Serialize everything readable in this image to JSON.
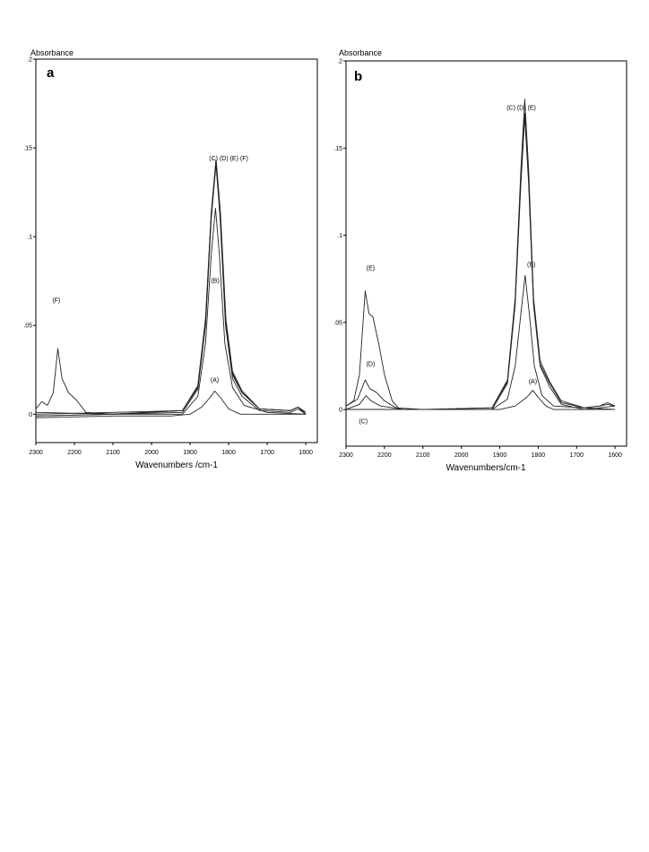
{
  "chart_data": [
    {
      "panel": "a",
      "type": "line",
      "ylabel": "Absorbance",
      "xlabel": "Wavenumbers /cm-1",
      "xlim": [
        2300,
        1570
      ],
      "ylim": [
        -0.016,
        0.2
      ],
      "x_reversed": true,
      "grid": false,
      "x_ticks": [
        "2300",
        "2200",
        "2100",
        "2000",
        "1900",
        "1800",
        "1700",
        "1600"
      ],
      "x_tick_values": [
        2300,
        2200,
        2100,
        2000,
        1900,
        1800,
        1700,
        1600
      ],
      "y_ticks": [
        ".2",
        ".15",
        ".1",
        ".05",
        "0"
      ],
      "y_tick_values": [
        0.2,
        0.15,
        0.1,
        0.05,
        0
      ],
      "annotations": [
        {
          "text": "(C) (D) (E) (F)",
          "x": 1800,
          "y": 0.143
        },
        {
          "text": "(B)",
          "x": 1835,
          "y": 0.074
        },
        {
          "text": "(F)",
          "x": 2247,
          "y": 0.063
        },
        {
          "text": "(A)",
          "x": 1836,
          "y": 0.018
        }
      ],
      "series": [
        {
          "values": [
            {
              "x": 2300,
              "y": -0.002
            },
            {
              "x": 2100,
              "y": -0.001
            },
            {
              "x": 1950,
              "y": -0.001
            },
            {
              "x": 1900,
              "y": 0.0
            },
            {
              "x": 1870,
              "y": 0.004
            },
            {
              "x": 1850,
              "y": 0.009
            },
            {
              "x": 1836,
              "y": 0.013
            },
            {
              "x": 1820,
              "y": 0.009
            },
            {
              "x": 1800,
              "y": 0.003
            },
            {
              "x": 1770,
              "y": 0.0
            },
            {
              "x": 1600,
              "y": 0.0
            }
          ]
        },
        {
          "values": [
            {
              "x": 2300,
              "y": 0.001
            },
            {
              "x": 2100,
              "y": 0.0
            },
            {
              "x": 1920,
              "y": 0.0
            },
            {
              "x": 1880,
              "y": 0.01
            },
            {
              "x": 1860,
              "y": 0.04
            },
            {
              "x": 1845,
              "y": 0.09
            },
            {
              "x": 1834,
              "y": 0.116
            },
            {
              "x": 1824,
              "y": 0.09
            },
            {
              "x": 1810,
              "y": 0.04
            },
            {
              "x": 1790,
              "y": 0.015
            },
            {
              "x": 1760,
              "y": 0.005
            },
            {
              "x": 1700,
              "y": 0.001
            },
            {
              "x": 1600,
              "y": 0.0
            }
          ]
        },
        {
          "values": [
            {
              "x": 2300,
              "y": -0.001
            },
            {
              "x": 2100,
              "y": 0.0
            },
            {
              "x": 1920,
              "y": 0.001
            },
            {
              "x": 1880,
              "y": 0.014
            },
            {
              "x": 1860,
              "y": 0.05
            },
            {
              "x": 1845,
              "y": 0.11
            },
            {
              "x": 1833,
              "y": 0.141
            },
            {
              "x": 1822,
              "y": 0.11
            },
            {
              "x": 1808,
              "y": 0.05
            },
            {
              "x": 1790,
              "y": 0.02
            },
            {
              "x": 1765,
              "y": 0.01
            },
            {
              "x": 1720,
              "y": 0.002
            },
            {
              "x": 1640,
              "y": 0.001
            },
            {
              "x": 1620,
              "y": 0.003
            },
            {
              "x": 1600,
              "y": 0.0
            }
          ]
        },
        {
          "values": [
            {
              "x": 2300,
              "y": 0.0
            },
            {
              "x": 2100,
              "y": 0.001
            },
            {
              "x": 1920,
              "y": 0.002
            },
            {
              "x": 1880,
              "y": 0.015
            },
            {
              "x": 1860,
              "y": 0.052
            },
            {
              "x": 1845,
              "y": 0.112
            },
            {
              "x": 1833,
              "y": 0.143
            },
            {
              "x": 1822,
              "y": 0.112
            },
            {
              "x": 1808,
              "y": 0.052
            },
            {
              "x": 1790,
              "y": 0.022
            },
            {
              "x": 1765,
              "y": 0.012
            },
            {
              "x": 1720,
              "y": 0.003
            },
            {
              "x": 1640,
              "y": 0.002
            },
            {
              "x": 1620,
              "y": 0.004
            },
            {
              "x": 1600,
              "y": 0.001
            }
          ]
        },
        {
          "values": [
            {
              "x": 2300,
              "y": -0.001
            },
            {
              "x": 2100,
              "y": 0.0
            },
            {
              "x": 1920,
              "y": 0.002
            },
            {
              "x": 1880,
              "y": 0.016
            },
            {
              "x": 1860,
              "y": 0.053
            },
            {
              "x": 1845,
              "y": 0.113
            },
            {
              "x": 1832,
              "y": 0.142
            },
            {
              "x": 1821,
              "y": 0.113
            },
            {
              "x": 1807,
              "y": 0.053
            },
            {
              "x": 1790,
              "y": 0.024
            },
            {
              "x": 1765,
              "y": 0.013
            },
            {
              "x": 1720,
              "y": 0.003
            },
            {
              "x": 1640,
              "y": 0.002
            },
            {
              "x": 1620,
              "y": 0.004
            },
            {
              "x": 1600,
              "y": 0.0
            }
          ]
        },
        {
          "values": [
            {
              "x": 2300,
              "y": 0.003
            },
            {
              "x": 2285,
              "y": 0.007
            },
            {
              "x": 2270,
              "y": 0.005
            },
            {
              "x": 2255,
              "y": 0.012
            },
            {
              "x": 2243,
              "y": 0.037
            },
            {
              "x": 2232,
              "y": 0.02
            },
            {
              "x": 2215,
              "y": 0.012
            },
            {
              "x": 2195,
              "y": 0.008
            },
            {
              "x": 2170,
              "y": 0.001
            },
            {
              "x": 2100,
              "y": 0.0
            },
            {
              "x": 1920,
              "y": 0.002
            },
            {
              "x": 1880,
              "y": 0.016
            },
            {
              "x": 1860,
              "y": 0.054
            },
            {
              "x": 1845,
              "y": 0.114
            },
            {
              "x": 1833,
              "y": 0.143
            },
            {
              "x": 1822,
              "y": 0.114
            },
            {
              "x": 1808,
              "y": 0.054
            },
            {
              "x": 1790,
              "y": 0.023
            },
            {
              "x": 1765,
              "y": 0.012
            },
            {
              "x": 1720,
              "y": 0.003
            },
            {
              "x": 1640,
              "y": 0.002
            },
            {
              "x": 1620,
              "y": 0.004
            },
            {
              "x": 1600,
              "y": 0.001
            }
          ]
        }
      ]
    },
    {
      "panel": "b",
      "type": "line",
      "ylabel": "Absorbance",
      "xlabel": "Wavenumbers/cm-1",
      "xlim": [
        2300,
        1570
      ],
      "ylim": [
        -0.021,
        0.2
      ],
      "x_reversed": true,
      "grid": false,
      "x_ticks": [
        "2300",
        "2200",
        "2100",
        "2000",
        "1900",
        "1800",
        "1700",
        "1600"
      ],
      "x_tick_values": [
        2300,
        2200,
        2100,
        2000,
        1900,
        1800,
        1700,
        1600
      ],
      "y_ticks": [
        ".2",
        ".15",
        ".1",
        ".05",
        "0"
      ],
      "y_tick_values": [
        0.2,
        0.15,
        0.1,
        0.05,
        0
      ],
      "annotations": [
        {
          "text": "(C) (D) (E)",
          "x": 1844,
          "y": 0.172
        },
        {
          "text": "(E)",
          "x": 2236,
          "y": 0.08
        },
        {
          "text": "(B)",
          "x": 1818,
          "y": 0.082
        },
        {
          "text": "(D)",
          "x": 2236,
          "y": 0.025
        },
        {
          "text": "(A)",
          "x": 1814,
          "y": 0.015
        },
        {
          "text": "(C)",
          "x": 2255,
          "y": -0.008
        }
      ],
      "series": [
        {
          "values": [
            {
              "x": 2300,
              "y": 0.0
            },
            {
              "x": 2100,
              "y": 0.0
            },
            {
              "x": 1900,
              "y": 0.0
            },
            {
              "x": 1860,
              "y": 0.002
            },
            {
              "x": 1830,
              "y": 0.007
            },
            {
              "x": 1814,
              "y": 0.011
            },
            {
              "x": 1800,
              "y": 0.007
            },
            {
              "x": 1780,
              "y": 0.002
            },
            {
              "x": 1760,
              "y": 0.0
            },
            {
              "x": 1600,
              "y": 0.0
            }
          ]
        },
        {
          "values": [
            {
              "x": 2300,
              "y": 0.0
            },
            {
              "x": 2100,
              "y": 0.0
            },
            {
              "x": 1920,
              "y": 0.0
            },
            {
              "x": 1880,
              "y": 0.006
            },
            {
              "x": 1860,
              "y": 0.025
            },
            {
              "x": 1845,
              "y": 0.055
            },
            {
              "x": 1834,
              "y": 0.077
            },
            {
              "x": 1823,
              "y": 0.055
            },
            {
              "x": 1810,
              "y": 0.025
            },
            {
              "x": 1790,
              "y": 0.008
            },
            {
              "x": 1760,
              "y": 0.002
            },
            {
              "x": 1600,
              "y": 0.0
            }
          ]
        },
        {
          "values": [
            {
              "x": 2300,
              "y": 0.0
            },
            {
              "x": 2265,
              "y": 0.003
            },
            {
              "x": 2248,
              "y": 0.008
            },
            {
              "x": 2235,
              "y": 0.005
            },
            {
              "x": 2210,
              "y": 0.002
            },
            {
              "x": 2150,
              "y": 0.0
            },
            {
              "x": 1920,
              "y": 0.0
            },
            {
              "x": 1880,
              "y": 0.015
            },
            {
              "x": 1860,
              "y": 0.06
            },
            {
              "x": 1845,
              "y": 0.13
            },
            {
              "x": 1835,
              "y": 0.168
            },
            {
              "x": 1825,
              "y": 0.13
            },
            {
              "x": 1812,
              "y": 0.06
            },
            {
              "x": 1795,
              "y": 0.025
            },
            {
              "x": 1770,
              "y": 0.013
            },
            {
              "x": 1740,
              "y": 0.003
            },
            {
              "x": 1680,
              "y": 0.0
            },
            {
              "x": 1640,
              "y": 0.001
            },
            {
              "x": 1600,
              "y": 0.002
            }
          ]
        },
        {
          "values": [
            {
              "x": 2300,
              "y": 0.002
            },
            {
              "x": 2270,
              "y": 0.006
            },
            {
              "x": 2250,
              "y": 0.017
            },
            {
              "x": 2238,
              "y": 0.012
            },
            {
              "x": 2222,
              "y": 0.01
            },
            {
              "x": 2200,
              "y": 0.005
            },
            {
              "x": 2170,
              "y": 0.001
            },
            {
              "x": 2100,
              "y": 0.0
            },
            {
              "x": 1920,
              "y": 0.001
            },
            {
              "x": 1880,
              "y": 0.016
            },
            {
              "x": 1860,
              "y": 0.062
            },
            {
              "x": 1845,
              "y": 0.132
            },
            {
              "x": 1835,
              "y": 0.17
            },
            {
              "x": 1825,
              "y": 0.132
            },
            {
              "x": 1812,
              "y": 0.062
            },
            {
              "x": 1795,
              "y": 0.026
            },
            {
              "x": 1770,
              "y": 0.015
            },
            {
              "x": 1740,
              "y": 0.004
            },
            {
              "x": 1680,
              "y": 0.001
            },
            {
              "x": 1640,
              "y": 0.002
            },
            {
              "x": 1620,
              "y": 0.003
            },
            {
              "x": 1600,
              "y": 0.002
            }
          ]
        },
        {
          "values": [
            {
              "x": 2300,
              "y": 0.002
            },
            {
              "x": 2280,
              "y": 0.005
            },
            {
              "x": 2265,
              "y": 0.02
            },
            {
              "x": 2250,
              "y": 0.068
            },
            {
              "x": 2240,
              "y": 0.055
            },
            {
              "x": 2230,
              "y": 0.053
            },
            {
              "x": 2215,
              "y": 0.038
            },
            {
              "x": 2200,
              "y": 0.02
            },
            {
              "x": 2180,
              "y": 0.005
            },
            {
              "x": 2160,
              "y": 0.0
            },
            {
              "x": 2100,
              "y": 0.0
            },
            {
              "x": 1920,
              "y": 0.001
            },
            {
              "x": 1880,
              "y": 0.017
            },
            {
              "x": 1860,
              "y": 0.064
            },
            {
              "x": 1845,
              "y": 0.138
            },
            {
              "x": 1835,
              "y": 0.178
            },
            {
              "x": 1825,
              "y": 0.138
            },
            {
              "x": 1812,
              "y": 0.064
            },
            {
              "x": 1795,
              "y": 0.028
            },
            {
              "x": 1770,
              "y": 0.016
            },
            {
              "x": 1740,
              "y": 0.005
            },
            {
              "x": 1680,
              "y": 0.001
            },
            {
              "x": 1640,
              "y": 0.002
            },
            {
              "x": 1620,
              "y": 0.004
            },
            {
              "x": 1600,
              "y": 0.002
            }
          ]
        }
      ]
    }
  ]
}
